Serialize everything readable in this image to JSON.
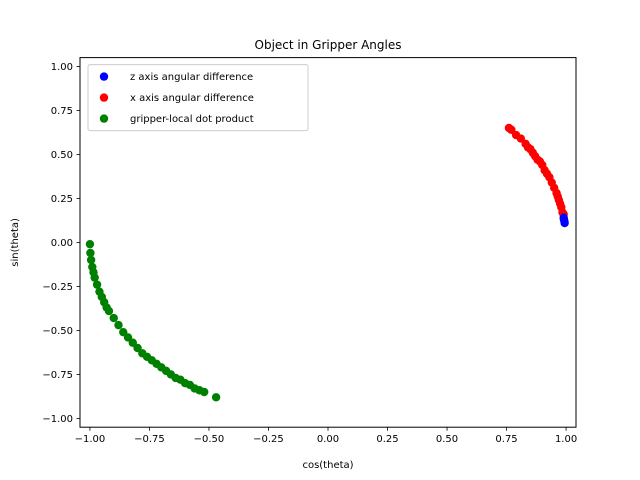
{
  "chart_data": {
    "type": "scatter",
    "title": "Object in Gripper Angles",
    "xlabel": "cos(theta)",
    "ylabel": "sin(theta)",
    "xlim": [
      -1.0417,
      1.0417
    ],
    "ylim": [
      -1.05,
      1.05
    ],
    "xticks": [
      -1.0,
      -0.75,
      -0.5,
      -0.25,
      0.0,
      0.25,
      0.5,
      0.75,
      1.0
    ],
    "xtick_labels": [
      "−1.00",
      "−0.75",
      "−0.50",
      "−0.25",
      "0.00",
      "0.25",
      "0.50",
      "0.75",
      "1.00"
    ],
    "yticks": [
      -1.0,
      -0.75,
      -0.5,
      -0.25,
      0.0,
      0.25,
      0.5,
      0.75,
      1.0
    ],
    "ytick_labels": [
      "−1.00",
      "−0.75",
      "−0.50",
      "−0.25",
      "0.00",
      "0.25",
      "0.50",
      "0.75",
      "1.00"
    ],
    "grid": false,
    "legend_position": "top-left",
    "series": [
      {
        "name": "z axis angular difference",
        "color": "#0000ff",
        "x": [
          0.994,
          0.993,
          0.991,
          0.99
        ],
        "y": [
          0.11,
          0.12,
          0.13,
          0.14
        ]
      },
      {
        "name": "x axis angular difference",
        "color": "#ff0000",
        "x": [
          0.76,
          0.77,
          0.79,
          0.81,
          0.83,
          0.84,
          0.85,
          0.86,
          0.87,
          0.88,
          0.89,
          0.9,
          0.91,
          0.92,
          0.93,
          0.94,
          0.95,
          0.96,
          0.965,
          0.97,
          0.975,
          0.98,
          0.985,
          0.99
        ],
        "y": [
          0.65,
          0.64,
          0.61,
          0.59,
          0.56,
          0.54,
          0.53,
          0.51,
          0.49,
          0.47,
          0.46,
          0.44,
          0.41,
          0.39,
          0.37,
          0.34,
          0.31,
          0.28,
          0.26,
          0.24,
          0.22,
          0.2,
          0.17,
          0.16
        ]
      },
      {
        "name": "gripper-local dot product",
        "color": "#008000",
        "x": [
          -1.0,
          -0.998,
          -0.995,
          -0.99,
          -0.985,
          -0.98,
          -0.97,
          -0.96,
          -0.95,
          -0.94,
          -0.93,
          -0.92,
          -0.9,
          -0.88,
          -0.86,
          -0.84,
          -0.82,
          -0.8,
          -0.78,
          -0.76,
          -0.74,
          -0.72,
          -0.7,
          -0.68,
          -0.66,
          -0.64,
          -0.62,
          -0.6,
          -0.58,
          -0.56,
          -0.54,
          -0.52,
          -0.47
        ],
        "y": [
          -0.01,
          -0.06,
          -0.1,
          -0.14,
          -0.17,
          -0.2,
          -0.24,
          -0.28,
          -0.31,
          -0.34,
          -0.37,
          -0.39,
          -0.43,
          -0.47,
          -0.51,
          -0.54,
          -0.57,
          -0.6,
          -0.63,
          -0.65,
          -0.67,
          -0.69,
          -0.71,
          -0.73,
          -0.75,
          -0.77,
          -0.78,
          -0.8,
          -0.81,
          -0.83,
          -0.84,
          -0.85,
          -0.88
        ]
      }
    ]
  }
}
